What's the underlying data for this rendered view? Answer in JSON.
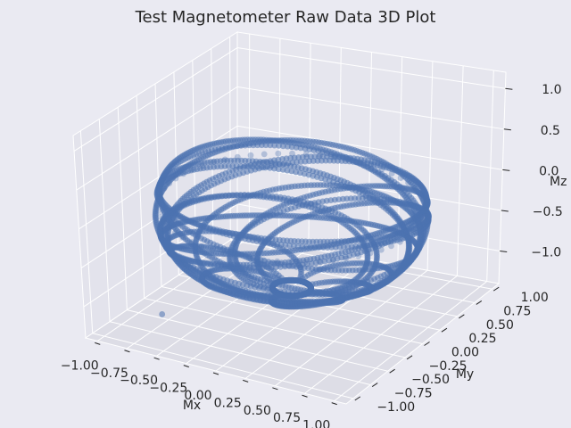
{
  "chart_data": {
    "type": "scatter3d",
    "title": "Test Magnetometer Raw Data 3D Plot",
    "xlabel": "Mx",
    "ylabel": "My",
    "zlabel": "Mz",
    "xlim": [
      -1.1,
      1.1
    ],
    "ylim": [
      -1.1,
      1.1
    ],
    "zlim": [
      -1.4,
      1.2
    ],
    "x_ticks": [
      "−1.00",
      "−0.75",
      "−0.50",
      "−0.25",
      "0.00",
      "0.25",
      "0.50",
      "0.75",
      "1.00"
    ],
    "y_ticks": [
      "−1.00",
      "−0.75",
      "−0.50",
      "−0.25",
      "0.00",
      "0.25",
      "0.50",
      "0.75",
      "1.00"
    ],
    "z_ticks": [
      "−1.0",
      "−0.5",
      "0.0",
      "0.5",
      "1.0"
    ],
    "grid": true,
    "series": [
      {
        "marker": "circle",
        "color": "#4C72B0",
        "description_of_shape": "samples lying on a sphere of radius ~1 centred at origin, z limited to about -1.0..0.55",
        "sample_points": [
          {
            "x": 0.0,
            "y": -1.0,
            "z": 0.0
          },
          {
            "x": 1.0,
            "y": 0.0,
            "z": 0.0
          },
          {
            "x": 0.0,
            "y": 1.0,
            "z": 0.0
          },
          {
            "x": -1.0,
            "y": 0.0,
            "z": 0.0
          },
          {
            "x": 0.5,
            "y": 0.5,
            "z": 0.5
          },
          {
            "x": -0.5,
            "y": -0.5,
            "z": -0.7
          },
          {
            "x": 0.1,
            "y": -0.1,
            "z": -0.99
          },
          {
            "x": -0.2,
            "y": 0.7,
            "z": 0.55
          }
        ],
        "outlier": {
          "x": -0.6,
          "y": -0.85,
          "z": -1.05
        }
      }
    ]
  }
}
